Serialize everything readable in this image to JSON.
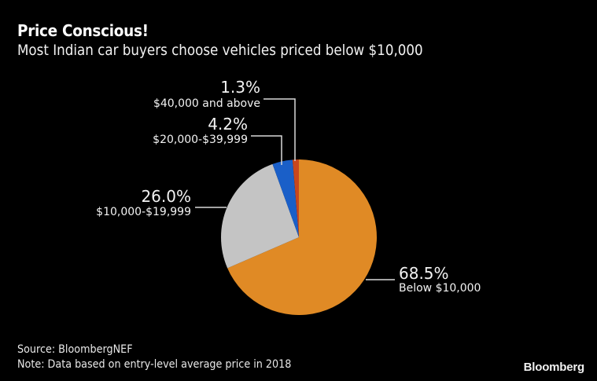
{
  "chart_data": {
    "type": "pie",
    "title": "Price Conscious!",
    "subtitle": "Most Indian car buyers choose vehicles priced below $10,000",
    "start": "12 o'clock",
    "direction": "clockwise",
    "slices": [
      {
        "label": "Below $10,000",
        "value": 68.5,
        "value_label": "68.5%",
        "color": "#e08a25"
      },
      {
        "label": "$10,000-$19,999",
        "value": 26.0,
        "value_label": "26.0%",
        "color": "#c4c4c4"
      },
      {
        "label": "$20,000-$39,999",
        "value": 4.2,
        "value_label": "4.2%",
        "color": "#1a5fc8"
      },
      {
        "label": "$40,000 and above",
        "value": 1.3,
        "value_label": "1.3%",
        "color": "#c8471e"
      }
    ],
    "leader_line_color": "#d9d9d9",
    "background": "#000000"
  },
  "footer": {
    "source": "Source: BloombergNEF",
    "note": "Note: Data based on entry-level average price in 2018",
    "brand": "Bloomberg"
  }
}
